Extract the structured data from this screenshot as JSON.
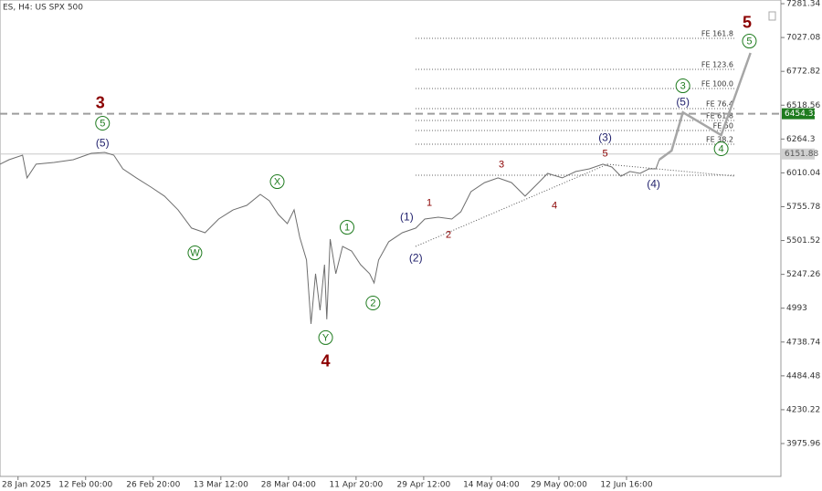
{
  "chart_data": {
    "type": "line",
    "title": "ES, H4: US SPX 500",
    "xlim": [
      -16,
      677
    ],
    "ylim": [
      3729,
      7309
    ],
    "xticks": [
      {
        "value": 0,
        "label": "28 Jan 2025"
      },
      {
        "value": 60,
        "label": "12 Feb 00:00"
      },
      {
        "value": 120,
        "label": "26 Feb 20:00"
      },
      {
        "value": 180,
        "label": "13 Mar 12:00"
      },
      {
        "value": 240,
        "label": "28 Mar 04:00"
      },
      {
        "value": 300,
        "label": "11 Apr 20:00"
      },
      {
        "value": 360,
        "label": "29 Apr 12:00"
      },
      {
        "value": 420,
        "label": "14 May 04:00"
      },
      {
        "value": 480,
        "label": "29 May 00:00"
      },
      {
        "value": 540,
        "label": "12 Jun 16:00"
      }
    ],
    "yticks": [
      7281.34,
      7027.08,
      6772.82,
      6518.56,
      6264.3,
      6010.04,
      5755.78,
      5501.52,
      5247.26,
      4993.0,
      4738.74,
      4484.48,
      4230.22,
      3975.96
    ],
    "series": [
      {
        "color": "#6e6e6e",
        "line_width": 1,
        "x": [
          -16,
          -8,
          4,
          8,
          16,
          32,
          49,
          65,
          77,
          85,
          93,
          105,
          118,
          130,
          142,
          154,
          166,
          178,
          191,
          203,
          215,
          223,
          231,
          239,
          245,
          250,
          256,
          260,
          264,
          268,
          272,
          274,
          277,
          282,
          288,
          296,
          304,
          312,
          316,
          320,
          329,
          341,
          353,
          361,
          373,
          385,
          393,
          402,
          414,
          426,
          438,
          450,
          462,
          470,
          483,
          495,
          507,
          519,
          527,
          535,
          543,
          552,
          560,
          566,
          569
        ],
        "values": [
          6075,
          6109,
          6143,
          5972,
          6075,
          6088,
          6109,
          6157,
          6164,
          6143,
          6040,
          5972,
          5903,
          5835,
          5732,
          5595,
          5560,
          5663,
          5732,
          5766,
          5848,
          5800,
          5697,
          5629,
          5732,
          5526,
          5355,
          4875,
          5252,
          4977,
          5320,
          4909,
          5512,
          5252,
          5457,
          5423,
          5320,
          5252,
          5183,
          5355,
          5492,
          5560,
          5595,
          5663,
          5677,
          5663,
          5718,
          5869,
          5937,
          5972,
          5937,
          5835,
          5937,
          6006,
          5972,
          6020,
          6040,
          6075,
          6054,
          5985,
          6020,
          6006,
          6040,
          6040,
          6109
        ]
      },
      {
        "color": "#a6a6a6",
        "line_width": 2.5,
        "x": [
          569,
          580,
          590,
          624,
          650
        ],
        "values": [
          6109,
          6177,
          6465,
          6294,
          6911
        ]
      }
    ],
    "levels": [
      {
        "label": "FE 161.8",
        "value": 7020.7
      },
      {
        "label": "FE 123.6",
        "value": 6787.6
      },
      {
        "label": "FE 100.0",
        "value": 6643.6
      },
      {
        "label": "FE 76.4",
        "value": 6492.7
      },
      {
        "label": "FE 61.8",
        "value": 6403.6
      },
      {
        "label": "FE 50",
        "value": 6328.2
      },
      {
        "label": "FE 38.2",
        "value": 6225.3
      },
      {
        "value": 5992.2
      }
    ],
    "price_lines": [
      {
        "value": 6454.32,
        "style": "dashed",
        "color": "#9e9e9e",
        "label_bg": "#1e7b1e"
      },
      {
        "value": 6151.88,
        "style": "solid",
        "color": "#c8c8c8",
        "label_bg": "#d0d0d0"
      }
    ],
    "annotations": [
      {
        "text": "3",
        "x": 73,
        "y": 6534,
        "style": "primary"
      },
      {
        "text": "5",
        "x": 75,
        "y": 6383,
        "style": "intermediate"
      },
      {
        "text": "(5)",
        "x": 75,
        "y": 6232,
        "style": "minor"
      },
      {
        "text": "W",
        "x": 157,
        "y": 5409,
        "style": "intermediate"
      },
      {
        "text": "X",
        "x": 230,
        "y": 5944,
        "style": "intermediate"
      },
      {
        "text": "Y",
        "x": 273,
        "y": 4772,
        "style": "intermediate"
      },
      {
        "text": "4",
        "x": 273,
        "y": 4593,
        "style": "primary"
      },
      {
        "text": "1",
        "x": 292,
        "y": 5601,
        "style": "intermediate"
      },
      {
        "text": "2",
        "x": 315,
        "y": 5032,
        "style": "intermediate"
      },
      {
        "text": "(1)",
        "x": 345,
        "y": 5677,
        "style": "minor"
      },
      {
        "text": "(2)",
        "x": 353,
        "y": 5368,
        "style": "minor"
      },
      {
        "text": "1",
        "x": 365,
        "y": 5787,
        "style": "minute"
      },
      {
        "text": "2",
        "x": 382,
        "y": 5547,
        "style": "minute"
      },
      {
        "text": "3",
        "x": 429,
        "y": 6075,
        "style": "minute"
      },
      {
        "text": "4",
        "x": 476,
        "y": 5766,
        "style": "minute"
      },
      {
        "text": "5",
        "x": 521,
        "y": 6157,
        "style": "minute"
      },
      {
        "text": "(3)",
        "x": 521,
        "y": 6273,
        "style": "minor"
      },
      {
        "text": "(4)",
        "x": 564,
        "y": 5924,
        "style": "minor"
      },
      {
        "text": "(5)",
        "x": 590,
        "y": 6541,
        "style": "minor"
      },
      {
        "text": "3",
        "x": 590,
        "y": 6664,
        "style": "intermediate"
      },
      {
        "text": "4",
        "x": 624,
        "y": 6191,
        "style": "intermediate"
      },
      {
        "text": "5",
        "x": 649,
        "y": 7000,
        "style": "intermediate"
      },
      {
        "text": "5",
        "x": 647,
        "y": 7137,
        "style": "primary"
      }
    ]
  }
}
